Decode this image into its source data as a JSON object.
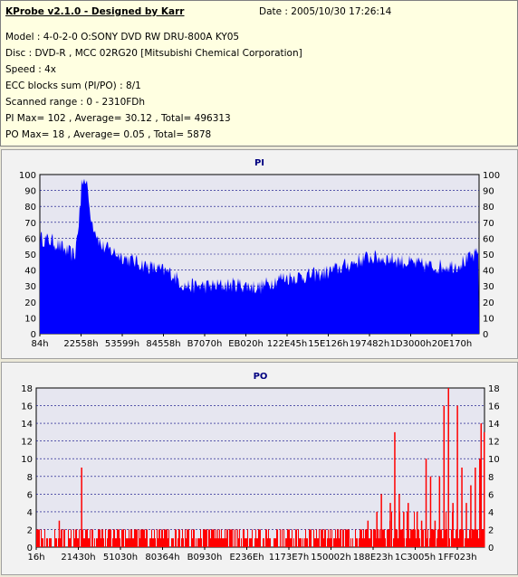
{
  "header": {
    "title": "KProbe v2.1.0 - Designed by Karr",
    "date": "Date : 2005/10/30 17:26:14",
    "model": "Model : 4-0-2-0 O:SONY    DVD RW DRU-800A  KY05",
    "disc": "Disc : DVD-R , MCC 02RG20  [Mitsubishi Chemical Corporation]",
    "speed": "Speed : 4x",
    "ecc": "ECC blocks sum (PI/PO) : 8/1",
    "range": "Scanned range : 0 - 2310FDh",
    "pi_summary": "PI Max= 102 , Average= 30.12 , Total= 496313",
    "po_summary": "PO Max= 18 , Average= 0.05 , Total= 5878"
  },
  "colors": {
    "pi_bar": "#0000ff",
    "po_bar": "#ff0000",
    "plot_bg": "#e6e6f0",
    "grid": "#000080",
    "title": "#000080"
  },
  "chart_data": [
    {
      "type": "area",
      "title": "PI",
      "ylim": [
        0,
        100
      ],
      "yticks": [
        0,
        10,
        20,
        30,
        40,
        50,
        60,
        70,
        80,
        90,
        100
      ],
      "xticks": [
        "84h",
        "22558h",
        "53599h",
        "84558h",
        "B7070h",
        "EB020h",
        "122E45h",
        "15E126h",
        "197482h",
        "1D3000h",
        "20E170h"
      ],
      "grid": "horizontal dashed",
      "series": [
        {
          "values_profile": [
            [
              0.0,
              60
            ],
            [
              0.03,
              58
            ],
            [
              0.06,
              52
            ],
            [
              0.08,
              49
            ],
            [
              0.1,
              98
            ],
            [
              0.12,
              70
            ],
            [
              0.14,
              55
            ],
            [
              0.2,
              47
            ],
            [
              0.25,
              42
            ],
            [
              0.3,
              38
            ],
            [
              0.33,
              30
            ],
            [
              0.4,
              30
            ],
            [
              0.45,
              31
            ],
            [
              0.5,
              29
            ],
            [
              0.55,
              35
            ],
            [
              0.6,
              36
            ],
            [
              0.65,
              38
            ],
            [
              0.7,
              43
            ],
            [
              0.75,
              48
            ],
            [
              0.8,
              47
            ],
            [
              0.85,
              44
            ],
            [
              0.9,
              42
            ],
            [
              0.95,
              43
            ],
            [
              1.0,
              50
            ]
          ]
        }
      ]
    },
    {
      "type": "bar",
      "title": "PO",
      "ylim": [
        0,
        18
      ],
      "yticks": [
        0,
        2,
        4,
        6,
        8,
        10,
        12,
        14,
        16,
        18
      ],
      "xticks": [
        "16h",
        "21430h",
        "51030h",
        "80364h",
        "B0930h",
        "E236Eh",
        "1173E7h",
        "150002h",
        "188E23h",
        "1C3005h",
        "1FF023h"
      ],
      "grid": "horizontal dashed",
      "spikes": [
        [
          0.1,
          9
        ],
        [
          0.05,
          3
        ],
        [
          0.74,
          3
        ],
        [
          0.76,
          4
        ],
        [
          0.77,
          6
        ],
        [
          0.79,
          5
        ],
        [
          0.8,
          13
        ],
        [
          0.81,
          6
        ],
        [
          0.82,
          4
        ],
        [
          0.83,
          5
        ],
        [
          0.85,
          4
        ],
        [
          0.86,
          3
        ],
        [
          0.87,
          10
        ],
        [
          0.88,
          8
        ],
        [
          0.89,
          3
        ],
        [
          0.9,
          8
        ],
        [
          0.91,
          16
        ],
        [
          0.92,
          18
        ],
        [
          0.93,
          5
        ],
        [
          0.94,
          16
        ],
        [
          0.95,
          9
        ],
        [
          0.96,
          5
        ],
        [
          0.97,
          7
        ],
        [
          0.98,
          9
        ],
        [
          0.99,
          10
        ],
        [
          0.993,
          14
        ],
        [
          1.0,
          13
        ]
      ]
    }
  ]
}
